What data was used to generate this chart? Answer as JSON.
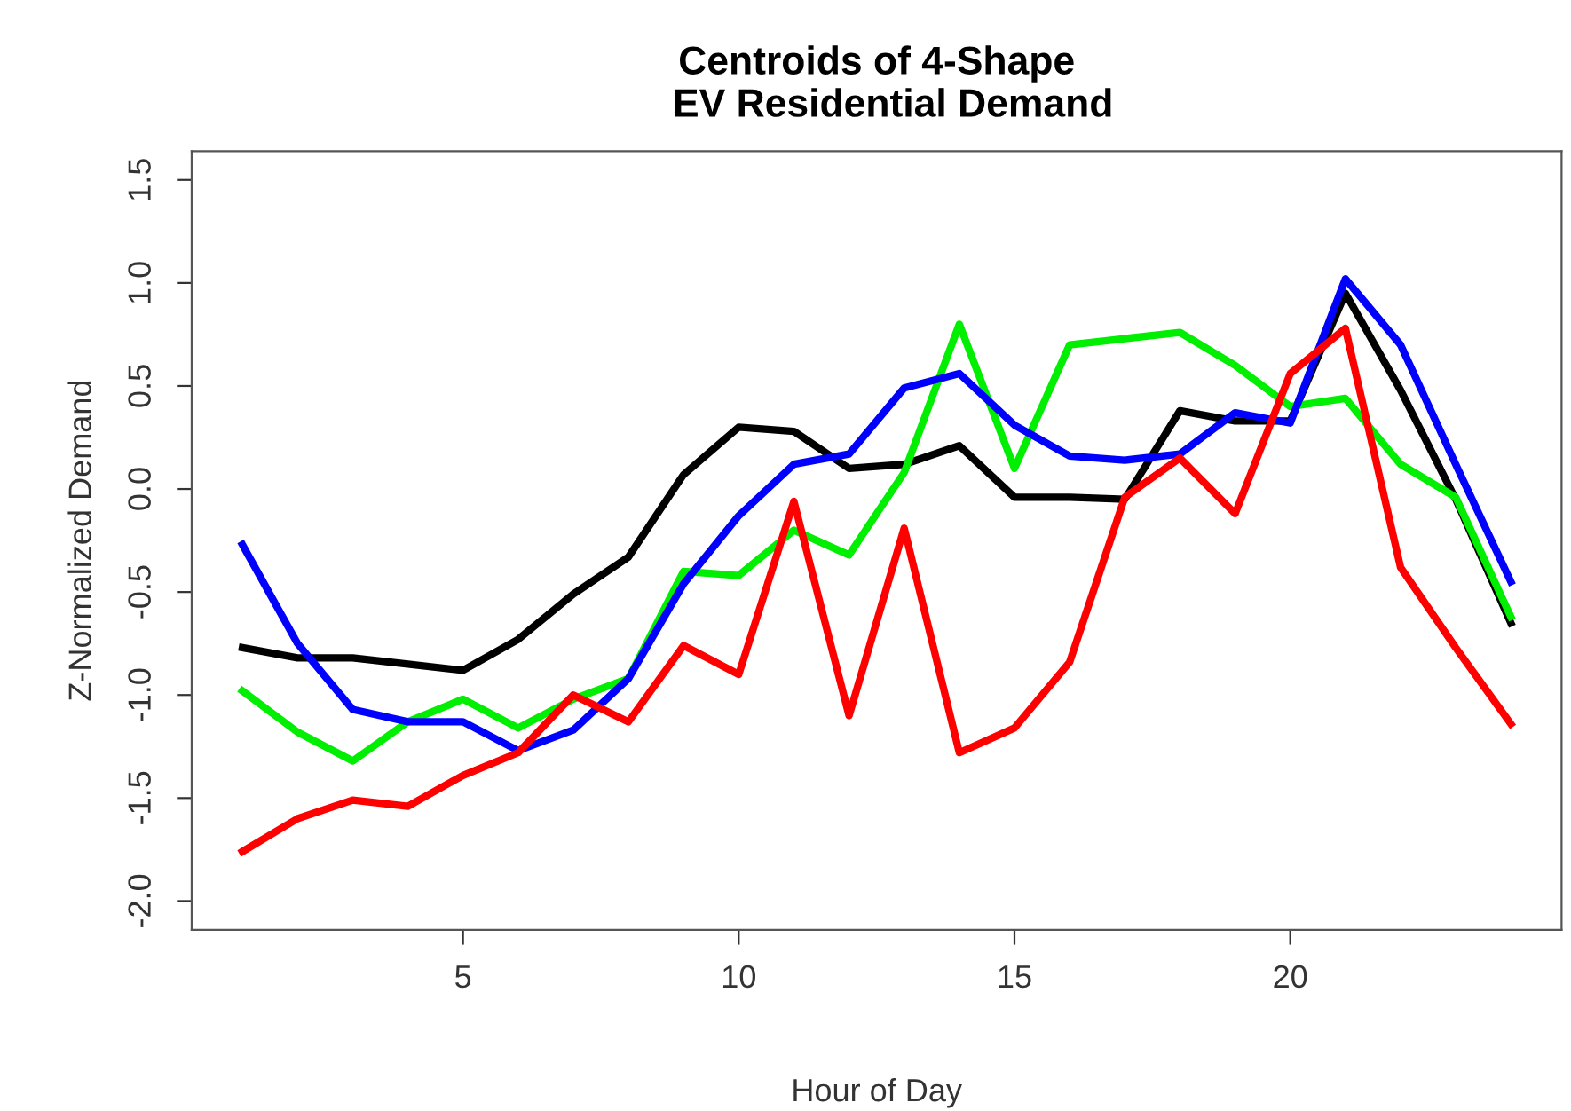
{
  "chart_data": {
    "type": "line",
    "title": "Centroids of 4-Shape\n   EV Residential Demand",
    "xlabel": "Hour of Day",
    "ylabel": "Z-Normalized Demand",
    "x": [
      1,
      2,
      3,
      4,
      5,
      6,
      7,
      8,
      9,
      10,
      11,
      12,
      13,
      14,
      15,
      16,
      17,
      18,
      19,
      20,
      21,
      22,
      23,
      24
    ],
    "xlim": [
      0.08,
      24.92
    ],
    "xticks": [
      5,
      10,
      15,
      20
    ],
    "ylim": [
      -2.14,
      1.64
    ],
    "yticks": [
      {
        "value": -2.0,
        "label": "-2.0"
      },
      {
        "value": -1.5,
        "label": "-1.5"
      },
      {
        "value": -1.0,
        "label": "-1.0"
      },
      {
        "value": -0.5,
        "label": "-0.5"
      },
      {
        "value": 0.0,
        "label": "0.0"
      },
      {
        "value": 0.5,
        "label": "0.5"
      },
      {
        "value": 1.0,
        "label": "1.0"
      },
      {
        "value": 1.5,
        "label": "1.5"
      }
    ],
    "grid": false,
    "legend": false,
    "marker": "none",
    "line_style": "solid",
    "series": [
      {
        "color": "#000000",
        "values": [
          -0.77,
          -0.82,
          -0.82,
          -0.85,
          -0.88,
          -0.73,
          -0.51,
          -0.33,
          0.07,
          0.3,
          0.28,
          0.1,
          0.12,
          0.21,
          -0.04,
          -0.04,
          -0.05,
          0.38,
          0.33,
          0.33,
          0.95,
          0.48,
          -0.05,
          -0.65
        ]
      },
      {
        "color": "#00ee00",
        "values": [
          -0.98,
          -1.18,
          -1.32,
          -1.13,
          -1.02,
          -1.16,
          -1.02,
          -0.92,
          -0.4,
          -0.42,
          -0.2,
          -0.32,
          0.08,
          0.8,
          0.1,
          0.7,
          0.73,
          0.76,
          0.6,
          0.4,
          0.44,
          0.12,
          -0.04,
          -0.62
        ]
      },
      {
        "color": "#0000ff",
        "values": [
          -0.27,
          -0.75,
          -1.07,
          -1.13,
          -1.13,
          -1.27,
          -1.17,
          -0.92,
          -0.46,
          -0.13,
          0.12,
          0.17,
          0.49,
          0.56,
          0.31,
          0.16,
          0.14,
          0.17,
          0.37,
          0.32,
          1.02,
          0.7,
          0.12,
          -0.45
        ]
      },
      {
        "color": "#ff0000",
        "values": [
          -1.76,
          -1.6,
          -1.51,
          -1.54,
          -1.39,
          -1.28,
          -1.0,
          -1.13,
          -0.76,
          -0.9,
          -0.06,
          -1.1,
          -0.19,
          -1.28,
          -1.16,
          -0.84,
          -0.04,
          0.15,
          -0.12,
          0.56,
          0.78,
          -0.38,
          -0.77,
          -1.14
        ]
      }
    ]
  }
}
